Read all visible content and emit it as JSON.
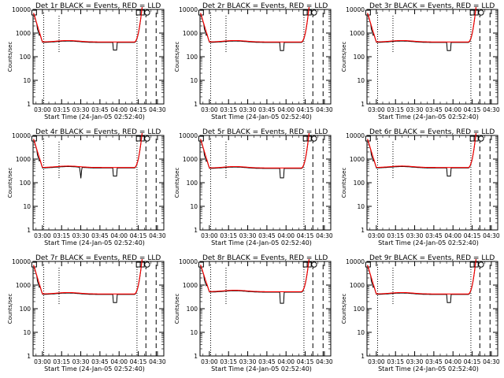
{
  "chart_data": {
    "type": "line",
    "layout": "grid-3x3",
    "x_label": "Start Time (24-Jan-05 02:52:40)",
    "x_ticks": [
      "03:00",
      "03:15",
      "03:30",
      "03:45",
      "04:00",
      "04:15",
      "04:30"
    ],
    "x_tick_minutes": [
      180,
      195,
      210,
      225,
      240,
      255,
      270
    ],
    "xlim_minutes": [
      172.67,
      275
    ],
    "y_label": "Counts/sec",
    "y_scale": "log",
    "ylim": [
      1,
      10000
    ],
    "y_ticks": [
      "1",
      "10",
      "100",
      "1000",
      "10000"
    ],
    "y_tick_values": [
      1,
      10,
      100,
      1000,
      10000
    ],
    "colors": {
      "events": "#000000",
      "lld": "#ff0000"
    },
    "legend_text": "BLACK = Events, RED = LLD",
    "vertical_markers": [
      {
        "style": "dotted",
        "x_minutes": [
          181,
          254
        ]
      },
      {
        "style": "dotted-short",
        "x_minutes": [
          193
        ]
      },
      {
        "style": "dashed",
        "x_minutes": [
          261,
          269
        ]
      }
    ],
    "top_flags": [
      {
        "shape": "square",
        "x_minutes": 173.5
      },
      {
        "shape": "squares",
        "x_minutes": 256
      },
      {
        "shape": "circle",
        "x_minutes": 262
      }
    ],
    "panels": [
      {
        "label": "Det 1r BLACK = Events, RED = LLD",
        "dip_minute": 237,
        "dip_low": 190,
        "level": 400
      },
      {
        "label": "Det 2r BLACK = Events, RED = LLD",
        "dip_minute": 237,
        "dip_low": 180,
        "level": 400
      },
      {
        "label": "Det 3r BLACK = Events, RED = LLD",
        "dip_minute": 237,
        "dip_low": 180,
        "level": 400
      },
      {
        "label": "Det 4r BLACK = Events, RED = LLD",
        "dip_minute": 237,
        "dip_low": 190,
        "level": 420,
        "extra_dip_minute": 210,
        "extra_dip_low": 130
      },
      {
        "label": "Det 5r BLACK = Events, RED = LLD",
        "dip_minute": 237,
        "dip_low": 160,
        "level": 400
      },
      {
        "label": "Det 6r BLACK = Events, RED = LLD",
        "dip_minute": 237,
        "dip_low": 190,
        "level": 420
      },
      {
        "label": "Det 7r BLACK = Events, RED = LLD",
        "dip_minute": 237,
        "dip_low": 180,
        "level": 400
      },
      {
        "label": "Det 8r BLACK = Events, RED = LLD",
        "dip_minute": 237,
        "dip_low": 170,
        "level": 500
      },
      {
        "label": "Det 9r BLACK = Events, RED = LLD",
        "dip_minute": 237,
        "dip_low": 180,
        "level": 400
      }
    ]
  }
}
